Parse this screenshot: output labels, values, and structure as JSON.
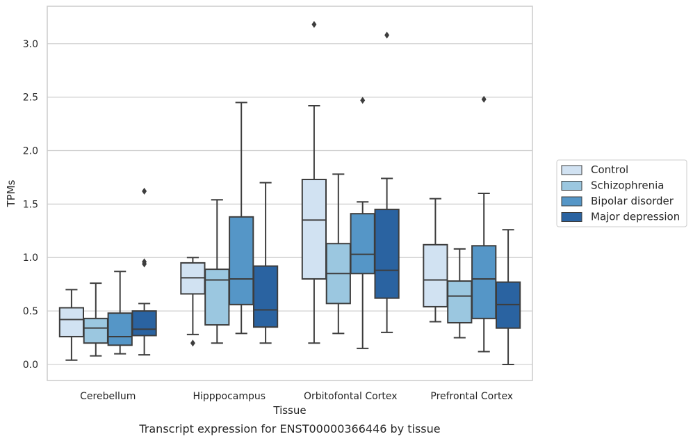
{
  "chart_data": {
    "type": "box",
    "xlabel": "Tissue",
    "ylabel": "TPMs",
    "caption": "Transcript expression for ENST00000366446 by tissue",
    "ylim": [
      -0.15,
      3.35
    ],
    "yticks": [
      0.0,
      0.5,
      1.0,
      1.5,
      2.0,
      2.5,
      3.0
    ],
    "ytick_labels": [
      "0.0",
      "0.5",
      "1.0",
      "1.5",
      "2.0",
      "2.5",
      "3.0"
    ],
    "grid": "horizontal",
    "legend_position": "right",
    "categories": [
      "Cerebellum",
      "Hipppocampus",
      "Orbitofontal Cortex",
      "Prefrontal Cortex"
    ],
    "series": [
      {
        "name": "Control",
        "color": "#d1e2f2",
        "boxes": [
          {
            "whisker_low": 0.04,
            "q1": 0.26,
            "median": 0.42,
            "q3": 0.53,
            "whisker_high": 0.7,
            "outliers": []
          },
          {
            "whisker_low": 0.28,
            "q1": 0.66,
            "median": 0.81,
            "q3": 0.95,
            "whisker_high": 1.0,
            "outliers": [
              0.2
            ]
          },
          {
            "whisker_low": 0.2,
            "q1": 0.8,
            "median": 1.35,
            "q3": 1.73,
            "whisker_high": 2.42,
            "outliers": [
              3.18
            ]
          },
          {
            "whisker_low": 0.4,
            "q1": 0.54,
            "median": 0.79,
            "q3": 1.12,
            "whisker_high": 1.55,
            "outliers": []
          }
        ]
      },
      {
        "name": "Schizophrenia",
        "color": "#9bc7e0",
        "boxes": [
          {
            "whisker_low": 0.08,
            "q1": 0.2,
            "median": 0.34,
            "q3": 0.43,
            "whisker_high": 0.76,
            "outliers": []
          },
          {
            "whisker_low": 0.2,
            "q1": 0.37,
            "median": 0.79,
            "q3": 0.89,
            "whisker_high": 1.54,
            "outliers": []
          },
          {
            "whisker_low": 0.29,
            "q1": 0.57,
            "median": 0.85,
            "q3": 1.13,
            "whisker_high": 1.78,
            "outliers": []
          },
          {
            "whisker_low": 0.25,
            "q1": 0.39,
            "median": 0.64,
            "q3": 0.78,
            "whisker_high": 1.08,
            "outliers": []
          }
        ]
      },
      {
        "name": "Bipolar disorder",
        "color": "#5596c7",
        "boxes": [
          {
            "whisker_low": 0.1,
            "q1": 0.18,
            "median": 0.26,
            "q3": 0.48,
            "whisker_high": 0.87,
            "outliers": []
          },
          {
            "whisker_low": 0.29,
            "q1": 0.56,
            "median": 0.8,
            "q3": 1.38,
            "whisker_high": 2.45,
            "outliers": []
          },
          {
            "whisker_low": 0.15,
            "q1": 0.85,
            "median": 1.03,
            "q3": 1.41,
            "whisker_high": 1.52,
            "outliers": [
              2.47
            ]
          },
          {
            "whisker_low": 0.12,
            "q1": 0.43,
            "median": 0.8,
            "q3": 1.11,
            "whisker_high": 1.6,
            "outliers": [
              2.48
            ]
          }
        ]
      },
      {
        "name": "Major depression",
        "color": "#2a63a1",
        "boxes": [
          {
            "whisker_low": 0.09,
            "q1": 0.27,
            "median": 0.33,
            "q3": 0.5,
            "whisker_high": 0.57,
            "outliers": [
              0.94,
              0.96,
              1.62
            ]
          },
          {
            "whisker_low": 0.2,
            "q1": 0.35,
            "median": 0.51,
            "q3": 0.92,
            "whisker_high": 1.7,
            "outliers": []
          },
          {
            "whisker_low": 0.3,
            "q1": 0.62,
            "median": 0.88,
            "q3": 1.45,
            "whisker_high": 1.74,
            "outliers": [
              3.08
            ]
          },
          {
            "whisker_low": 0.0,
            "q1": 0.34,
            "median": 0.56,
            "q3": 0.77,
            "whisker_high": 1.26,
            "outliers": []
          }
        ]
      }
    ]
  }
}
